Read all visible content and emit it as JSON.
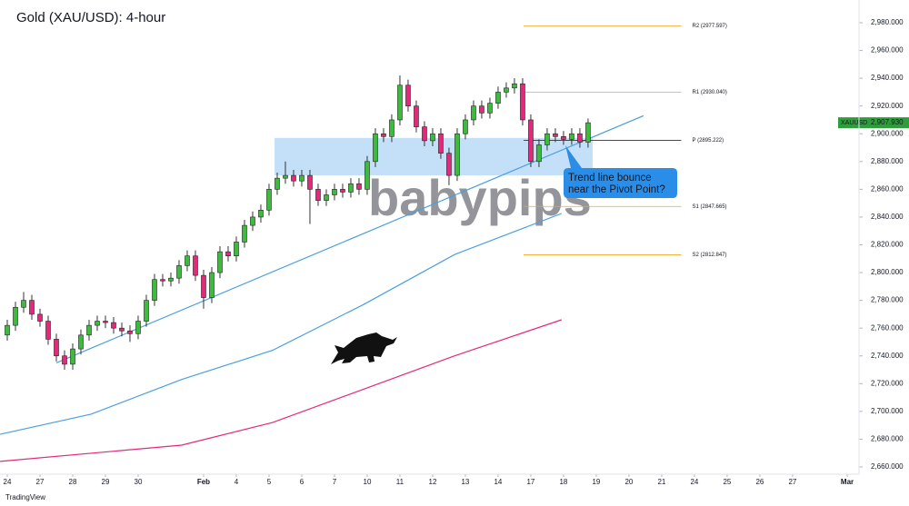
{
  "chart_data": {
    "type": "candlestick",
    "title": "Gold (XAU/USD): 4-hour",
    "source": "TradingView",
    "watermark": "babypips",
    "grid": false,
    "up_color": "#3dbb3d",
    "down_color": "#e4287a",
    "xlim": [
      -0.222,
      26.03
    ],
    "ylim": [
      2654.76,
      2996.36
    ],
    "xticks": [
      {
        "value": 0,
        "label": "24"
      },
      {
        "value": 1,
        "label": "27"
      },
      {
        "value": 2,
        "label": "28"
      },
      {
        "value": 3,
        "label": "29"
      },
      {
        "value": 4,
        "label": "30"
      },
      {
        "value": 6,
        "label": "Feb"
      },
      {
        "value": 7,
        "label": "4"
      },
      {
        "value": 8,
        "label": "5"
      },
      {
        "value": 9,
        "label": "6"
      },
      {
        "value": 10,
        "label": "7"
      },
      {
        "value": 11,
        "label": "10"
      },
      {
        "value": 12,
        "label": "11"
      },
      {
        "value": 13,
        "label": "12"
      },
      {
        "value": 14,
        "label": "13"
      },
      {
        "value": 15,
        "label": "14"
      },
      {
        "value": 16,
        "label": "17"
      },
      {
        "value": 17,
        "label": "18"
      },
      {
        "value": 18,
        "label": "19"
      },
      {
        "value": 19,
        "label": "20"
      },
      {
        "value": 20,
        "label": "21"
      },
      {
        "value": 21,
        "label": "24"
      },
      {
        "value": 22,
        "label": "25"
      },
      {
        "value": 23,
        "label": "26"
      },
      {
        "value": 24,
        "label": "27"
      },
      {
        "value": 25.67,
        "label": "Mar"
      }
    ],
    "yticks": [
      {
        "value": 2660,
        "label": "2,660.000"
      },
      {
        "value": 2680,
        "label": "2,680.000"
      },
      {
        "value": 2700,
        "label": "2,700.000"
      },
      {
        "value": 2720,
        "label": "2,720.000"
      },
      {
        "value": 2740,
        "label": "2,740.000"
      },
      {
        "value": 2760,
        "label": "2,760.000"
      },
      {
        "value": 2780,
        "label": "2,780.000"
      },
      {
        "value": 2800,
        "label": "2,800.000"
      },
      {
        "value": 2820,
        "label": "2,820.000"
      },
      {
        "value": 2840,
        "label": "2,840.000"
      },
      {
        "value": 2860,
        "label": "2,860.000"
      },
      {
        "value": 2880,
        "label": "2,880.000"
      },
      {
        "value": 2900,
        "label": "2,900.000"
      },
      {
        "value": 2920,
        "label": "2,920.000"
      },
      {
        "value": 2940,
        "label": "2,940.000"
      },
      {
        "value": 2960,
        "label": "2,960.000"
      },
      {
        "value": 2980,
        "label": "2,980.000"
      }
    ],
    "x": [
      0,
      0.25,
      0.5,
      0.75,
      1,
      1.25,
      1.5,
      1.75,
      2,
      2.25,
      2.5,
      2.75,
      3,
      3.25,
      3.5,
      3.75,
      4,
      4.25,
      4.5,
      4.75,
      5,
      5.25,
      5.5,
      5.75,
      6,
      6.25,
      6.5,
      6.75,
      7,
      7.25,
      7.5,
      7.75,
      8,
      8.25,
      8.5,
      8.75,
      9,
      9.25,
      9.5,
      9.75,
      10,
      10.25,
      10.5,
      10.75,
      11,
      11.25,
      11.5,
      11.75,
      12,
      12.25,
      12.5,
      12.75,
      13,
      13.25,
      13.5,
      13.75,
      14,
      14.25,
      14.5,
      14.75,
      15,
      15.25,
      15.5,
      15.75,
      16,
      16.25,
      16.5,
      16.75,
      17,
      17.25,
      17.5,
      17.75
    ],
    "open": [
      2755,
      2762,
      2775,
      2780,
      2770,
      2765,
      2752,
      2740,
      2734,
      2745,
      2755,
      2762,
      2765,
      2764,
      2760,
      2758,
      2756,
      2765,
      2780,
      2795,
      2794,
      2796,
      2805,
      2812,
      2798,
      2782,
      2800,
      2815,
      2812,
      2822,
      2834,
      2840,
      2845,
      2860,
      2868,
      2870,
      2866,
      2870,
      2860,
      2852,
      2856,
      2860,
      2858,
      2864,
      2860,
      2880,
      2900,
      2898,
      2910,
      2935,
      2920,
      2905,
      2895,
      2900,
      2886,
      2870,
      2900,
      2910,
      2920,
      2915,
      2922,
      2930,
      2933,
      2936,
      2910,
      2880,
      2892,
      2900,
      2898,
      2896,
      2900,
      2894
    ],
    "high": [
      2766,
      2779,
      2786,
      2784,
      2774,
      2769,
      2756,
      2744,
      2749,
      2759,
      2766,
      2769,
      2769,
      2768,
      2764,
      2762,
      2769,
      2784,
      2799,
      2799,
      2800,
      2809,
      2816,
      2816,
      2802,
      2804,
      2819,
      2819,
      2826,
      2838,
      2844,
      2849,
      2864,
      2872,
      2880,
      2874,
      2874,
      2874,
      2864,
      2860,
      2864,
      2864,
      2868,
      2868,
      2884,
      2904,
      2904,
      2914,
      2942,
      2939,
      2924,
      2909,
      2904,
      2904,
      2890,
      2904,
      2914,
      2924,
      2924,
      2926,
      2934,
      2937,
      2940,
      2940,
      2914,
      2896,
      2904,
      2904,
      2902,
      2904,
      2904,
      2911
    ],
    "low": [
      2751,
      2758,
      2771,
      2766,
      2761,
      2748,
      2736,
      2730,
      2730,
      2741,
      2751,
      2758,
      2760,
      2756,
      2754,
      2750,
      2752,
      2761,
      2776,
      2790,
      2790,
      2792,
      2801,
      2794,
      2774,
      2778,
      2796,
      2808,
      2808,
      2818,
      2830,
      2836,
      2841,
      2856,
      2864,
      2862,
      2862,
      2835,
      2848,
      2848,
      2852,
      2854,
      2854,
      2856,
      2856,
      2876,
      2894,
      2894,
      2906,
      2916,
      2901,
      2891,
      2891,
      2882,
      2863,
      2866,
      2896,
      2906,
      2911,
      2911,
      2918,
      2926,
      2929,
      2906,
      2876,
      2876,
      2888,
      2894,
      2892,
      2892,
      2890,
      2890
    ],
    "close": [
      2762,
      2775,
      2780,
      2770,
      2765,
      2752,
      2740,
      2734,
      2745,
      2755,
      2762,
      2765,
      2764,
      2760,
      2758,
      2756,
      2765,
      2780,
      2795,
      2794,
      2796,
      2805,
      2812,
      2798,
      2782,
      2800,
      2815,
      2812,
      2822,
      2834,
      2840,
      2845,
      2860,
      2868,
      2870,
      2866,
      2870,
      2860,
      2852,
      2856,
      2860,
      2858,
      2864,
      2860,
      2880,
      2900,
      2898,
      2910,
      2935,
      2920,
      2905,
      2895,
      2900,
      2886,
      2870,
      2900,
      2910,
      2920,
      2915,
      2922,
      2930,
      2933,
      2936,
      2910,
      2880,
      2892,
      2900,
      2898,
      2896,
      2900,
      2894,
      2907.93
    ],
    "moving_averages": [
      {
        "color": "#4a9fe0",
        "x": [
          -0.22,
          2.56,
          5.33,
          8.11,
          10.89,
          13.67,
          16.94
        ],
        "values": [
          2683.5,
          2698,
          2723,
          2744,
          2777,
          2813,
          2842.6
        ]
      },
      {
        "color": "#e4287a",
        "x": [
          -0.22,
          5.33,
          8.11,
          10.89,
          13.67,
          16.94
        ],
        "values": [
          2664,
          2675.7,
          2692,
          2716,
          2740,
          2766
        ]
      }
    ],
    "trend_line": {
      "color": "#4a9fe0",
      "x": [
        1.5,
        19.44
      ],
      "values": [
        2735,
        2913
      ]
    },
    "zone": {
      "color": "#9ccbf5",
      "x": [
        8.17,
        17.89
      ],
      "values": [
        2870,
        2897
      ]
    },
    "pivot_x": [
      15.78,
      20.6
    ],
    "pivots": [
      {
        "label": "R2 (2977.597)",
        "value": 2977.597,
        "color": "#f5a623"
      },
      {
        "label": "R1 (2930.040)",
        "value": 2930.04,
        "color": "#f5a623"
      },
      {
        "label": "P (2895.222)",
        "value": 2895.222,
        "color": "#333333"
      },
      {
        "label": "S1 (2847.665)",
        "value": 2847.665,
        "color": "#f5a623"
      },
      {
        "label": "S2 (2812.847)",
        "value": 2812.847,
        "color": "#f5a623"
      }
    ],
    "last_price": {
      "symbol": "XAUUSD",
      "value": 2907.93,
      "label": "2,907.930",
      "color": "#2e9e3a"
    },
    "callout": [
      "Trend line bounce",
      "near the Pivot Point?"
    ]
  }
}
